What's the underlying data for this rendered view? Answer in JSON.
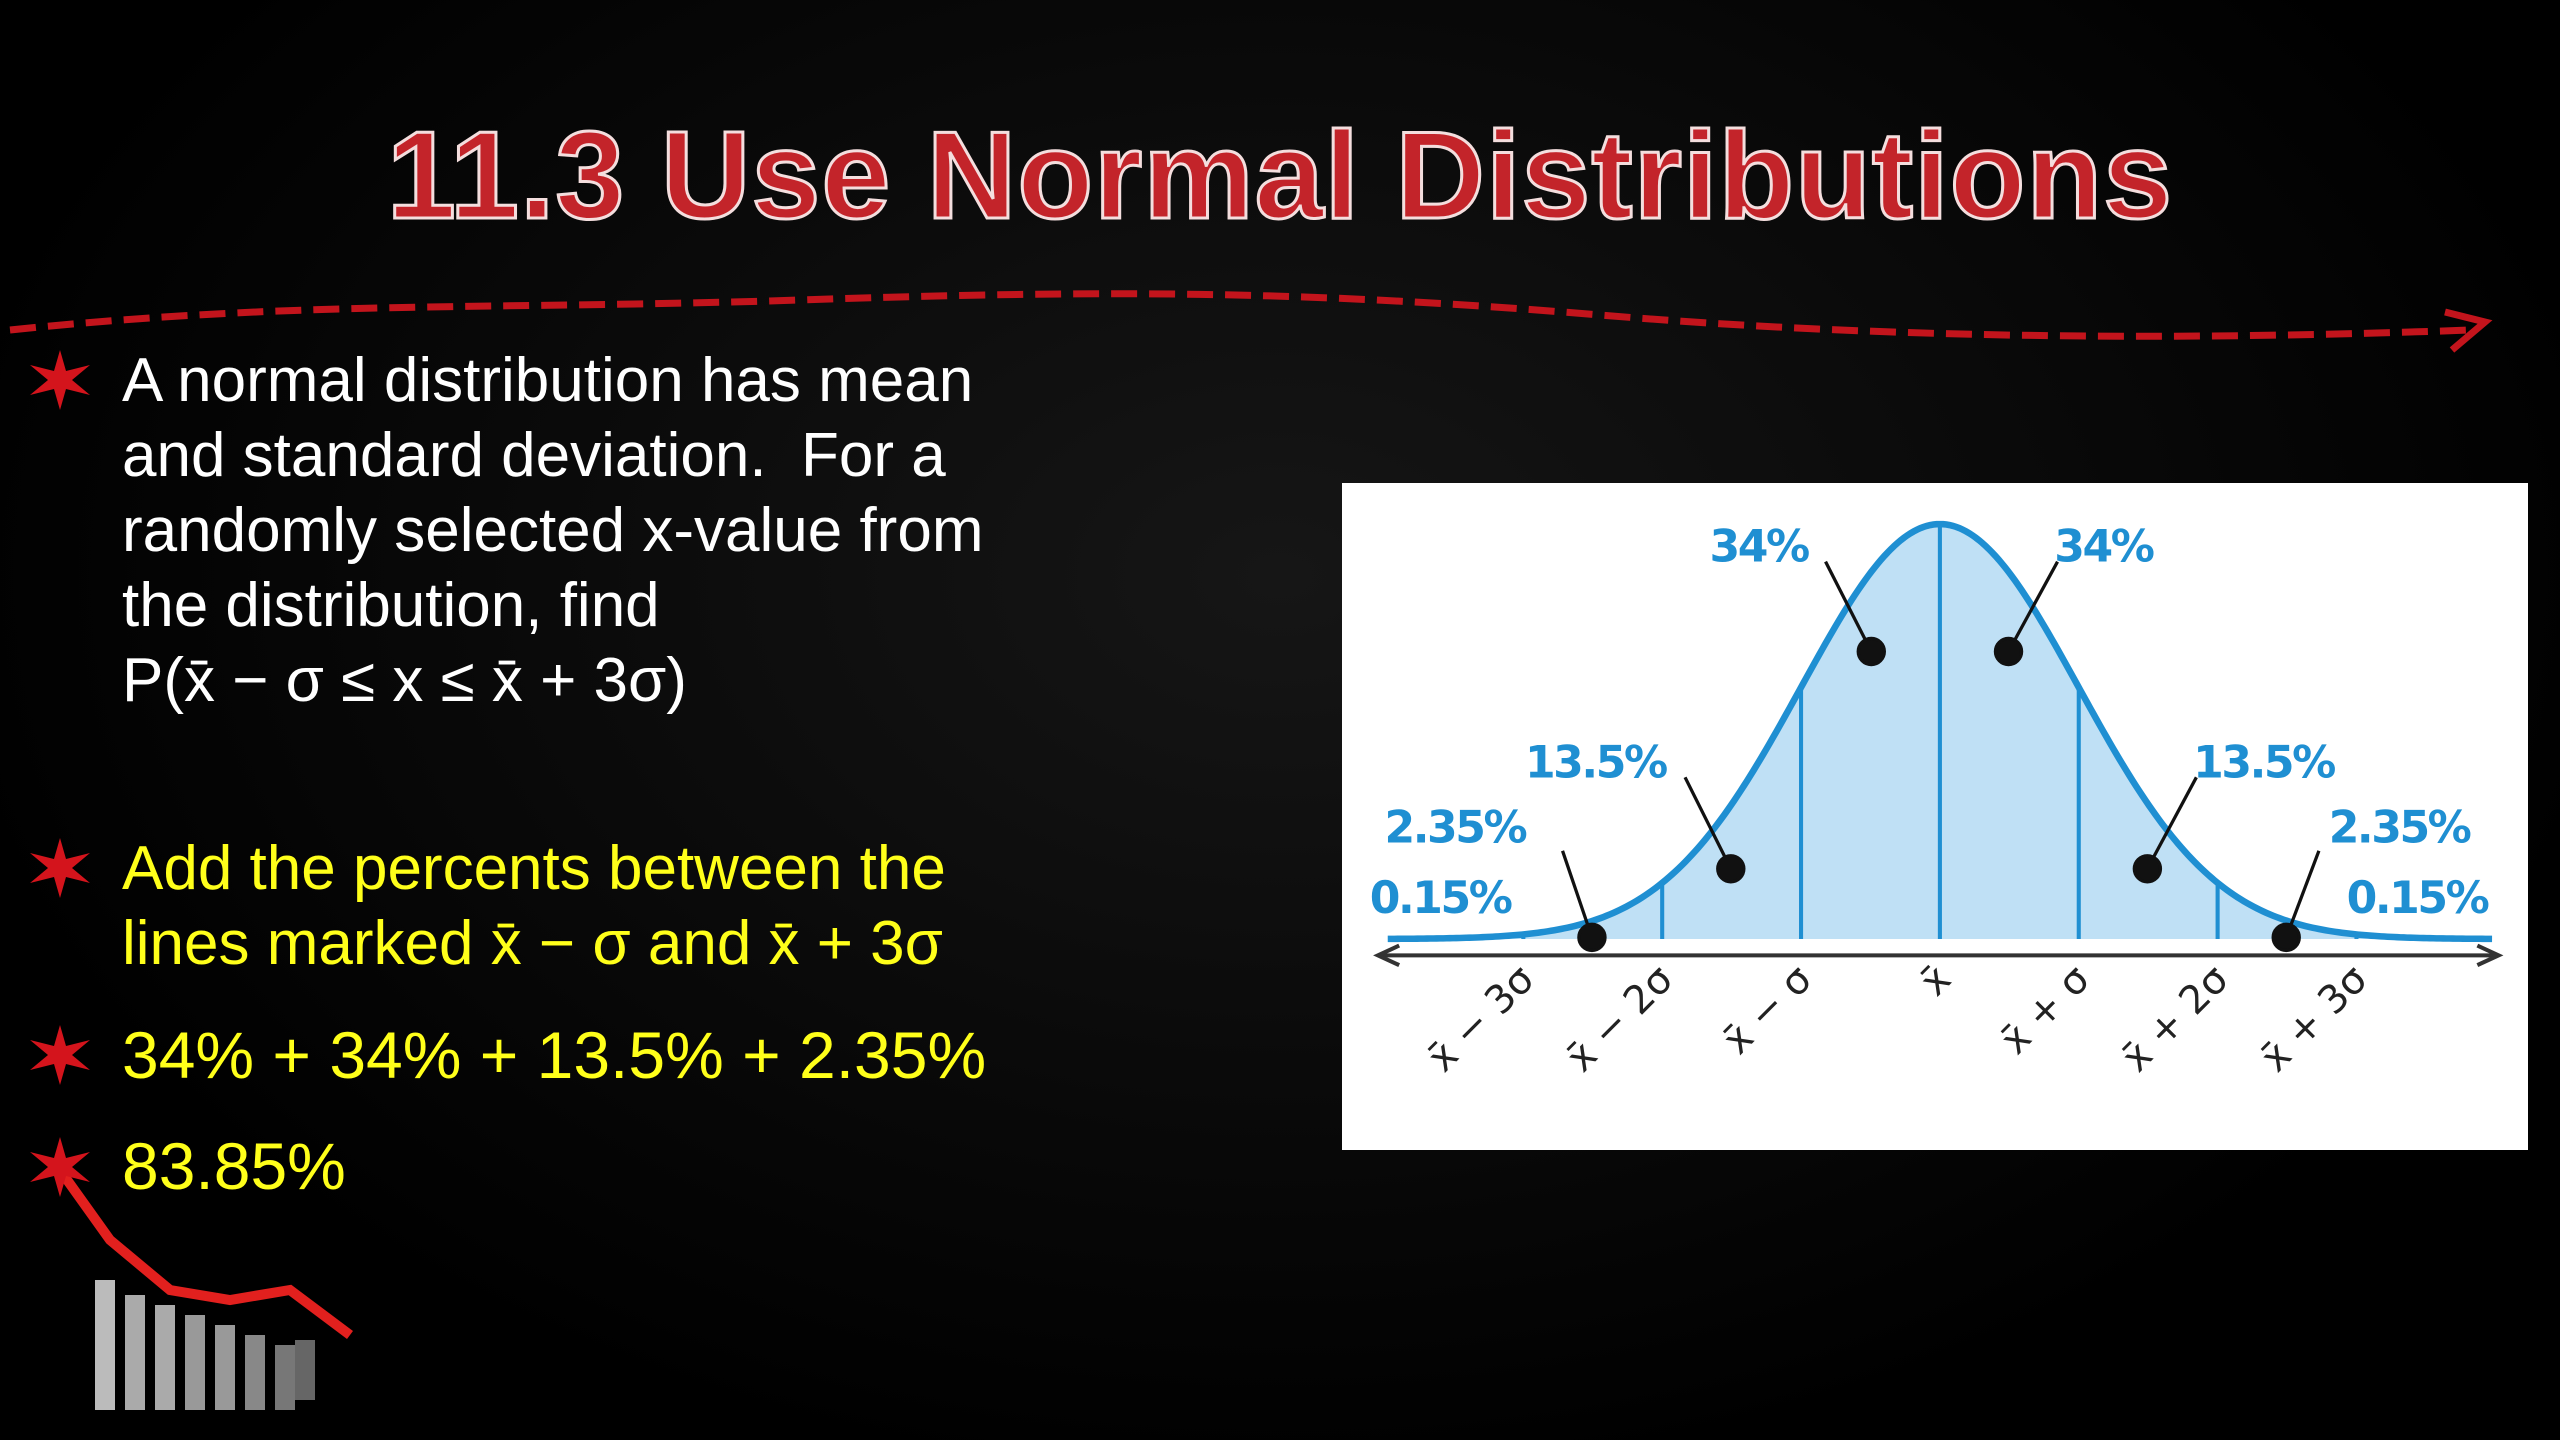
{
  "header": {
    "title": "11.3 Use Normal Distributions"
  },
  "bullets": [
    {
      "lines": [
        "A normal distribution has mean",
        "and standard deviation.  For a",
        "randomly selected x-value from",
        "the distribution, find",
        "P(x̄ − σ ≤ x ≤ x̄ + 3σ)"
      ]
    },
    {
      "lines": [
        "Add the percents between the",
        "lines marked x̄ − σ and x̄ + 3σ"
      ]
    },
    {
      "lines": [
        "34% + 34% + 13.5% + 2.35%"
      ]
    },
    {
      "lines": [
        "83.85%"
      ]
    }
  ],
  "figure": {
    "percent_labels": [
      "0.15%",
      "2.35%",
      "13.5%",
      "34%",
      "34%",
      "13.5%",
      "2.35%",
      "0.15%"
    ],
    "axis_labels": [
      "x̄ − 3σ",
      "x̄ − 2σ",
      "x̄ − σ",
      "x̄",
      "x̄ + σ",
      "x̄ + 2σ",
      "x̄ + 3σ"
    ]
  }
}
